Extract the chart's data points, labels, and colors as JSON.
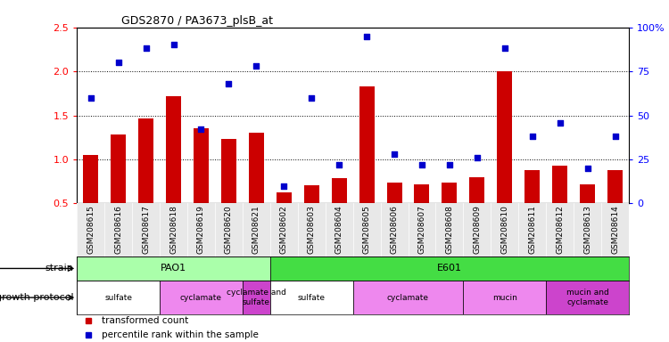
{
  "title": "GDS2870 / PA3673_plsB_at",
  "samples": [
    "GSM208615",
    "GSM208616",
    "GSM208617",
    "GSM208618",
    "GSM208619",
    "GSM208620",
    "GSM208621",
    "GSM208602",
    "GSM208603",
    "GSM208604",
    "GSM208605",
    "GSM208606",
    "GSM208607",
    "GSM208608",
    "GSM208609",
    "GSM208610",
    "GSM208611",
    "GSM208612",
    "GSM208613",
    "GSM208614"
  ],
  "bar_values": [
    1.05,
    1.28,
    1.47,
    1.72,
    1.35,
    1.23,
    1.3,
    0.63,
    0.71,
    0.79,
    1.83,
    0.74,
    0.72,
    0.74,
    0.8,
    2.0,
    0.88,
    0.93,
    0.72,
    0.88
  ],
  "dot_values": [
    60,
    80,
    88,
    90,
    42,
    68,
    78,
    10,
    60,
    22,
    95,
    28,
    22,
    22,
    26,
    88,
    38,
    46,
    20,
    38
  ],
  "bar_color": "#cc0000",
  "dot_color": "#0000cc",
  "ylim_left": [
    0.5,
    2.5
  ],
  "ylim_right": [
    0,
    100
  ],
  "yticks_left": [
    0.5,
    1.0,
    1.5,
    2.0,
    2.5
  ],
  "yticks_right": [
    0,
    25,
    50,
    75,
    100
  ],
  "ytick_labels_right": [
    "0",
    "25",
    "50",
    "75",
    "100%"
  ],
  "hlines": [
    1.0,
    1.5,
    2.0
  ],
  "strain_row": [
    {
      "label": "PAO1",
      "start": 0,
      "end": 7,
      "color": "#aaffaa"
    },
    {
      "label": "E601",
      "start": 7,
      "end": 20,
      "color": "#44dd44"
    }
  ],
  "protocol_row": [
    {
      "label": "sulfate",
      "start": 0,
      "end": 3,
      "color": "#ffffff"
    },
    {
      "label": "cyclamate",
      "start": 3,
      "end": 6,
      "color": "#ee88ee"
    },
    {
      "label": "cyclamate and\nsulfate",
      "start": 6,
      "end": 7,
      "color": "#cc44cc"
    },
    {
      "label": "sulfate",
      "start": 7,
      "end": 10,
      "color": "#ffffff"
    },
    {
      "label": "cyclamate",
      "start": 10,
      "end": 14,
      "color": "#ee88ee"
    },
    {
      "label": "mucin",
      "start": 14,
      "end": 17,
      "color": "#ee88ee"
    },
    {
      "label": "mucin and\ncyclamate",
      "start": 17,
      "end": 20,
      "color": "#cc44cc"
    }
  ],
  "legend_items": [
    {
      "label": "transformed count",
      "color": "#cc0000"
    },
    {
      "label": "percentile rank within the sample",
      "color": "#0000cc"
    }
  ],
  "row_labels": [
    "strain",
    "growth protocol"
  ]
}
